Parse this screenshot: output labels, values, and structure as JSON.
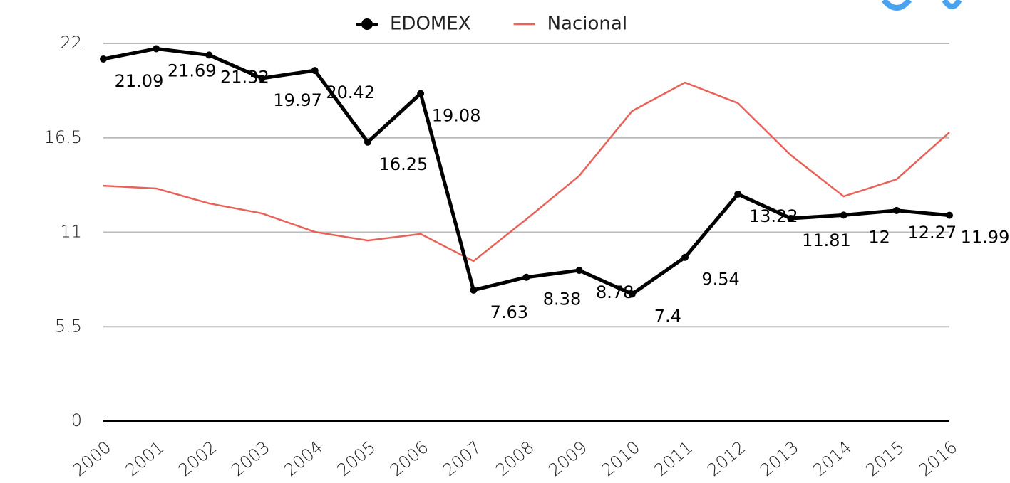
{
  "chart_data": {
    "type": "line",
    "categories": [
      "2000",
      "2001",
      "2002",
      "2003",
      "2004",
      "2005",
      "2006",
      "2007",
      "2008",
      "2009",
      "2010",
      "2011",
      "2012",
      "2013",
      "2014",
      "2015",
      "2016"
    ],
    "series": [
      {
        "name": "EDOMEX",
        "color": "#000000",
        "values": [
          21.09,
          21.69,
          21.32,
          19.97,
          20.42,
          16.25,
          19.08,
          7.63,
          8.38,
          8.78,
          7.4,
          9.54,
          13.22,
          11.81,
          12,
          12.27,
          11.99
        ]
      },
      {
        "name": "Nacional",
        "color": "#e8625a",
        "values": [
          13.71,
          13.55,
          12.68,
          12.1,
          11.02,
          10.52,
          10.9,
          9.32,
          11.76,
          14.29,
          18.06,
          19.72,
          18.52,
          15.49,
          13.09,
          14.08,
          16.82
        ]
      }
    ],
    "ylim": [
      0,
      22
    ],
    "yticks": [
      0,
      5.5,
      11,
      16.5,
      22
    ],
    "grid": true,
    "legend": "top"
  }
}
